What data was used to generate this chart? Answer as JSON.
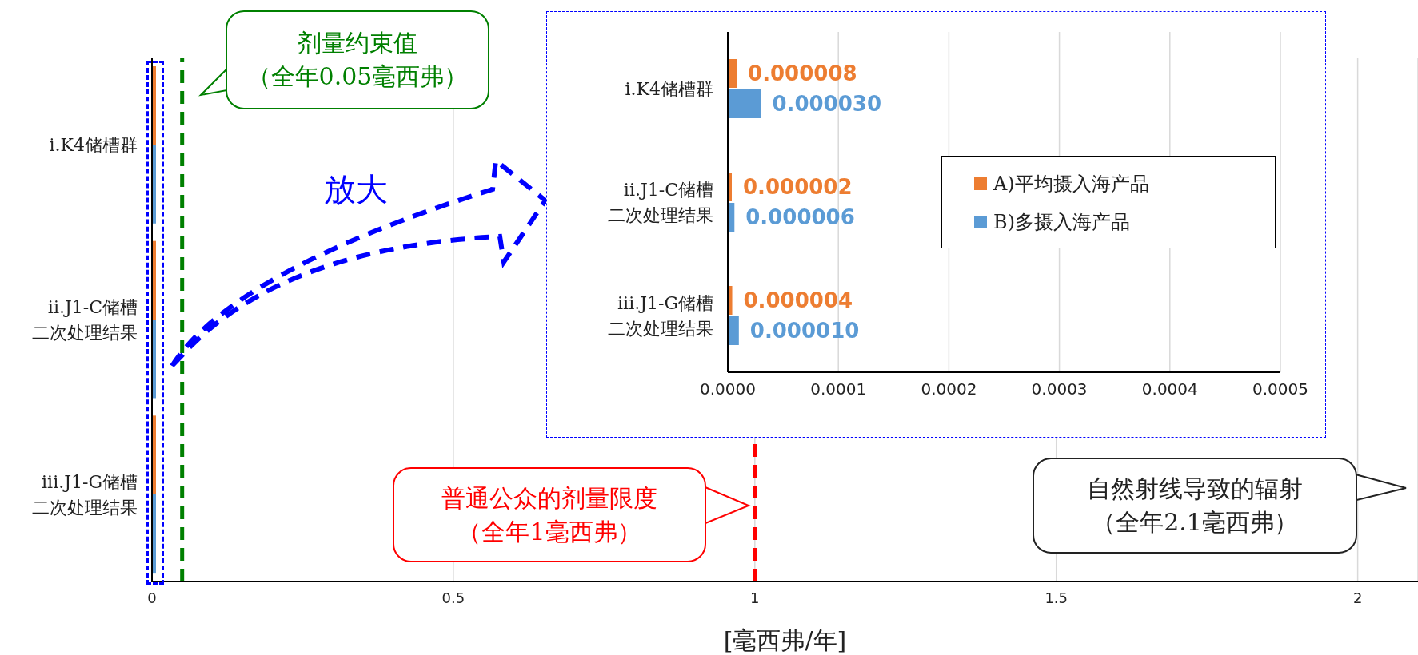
{
  "chart_data": [
    {
      "type": "bar",
      "orientation": "horizontal",
      "categories": [
        "i.K4储槽群",
        "ii.J1-C储槽二次处理结果",
        "iii.J1-G储槽二次处理结果"
      ],
      "series": [
        {
          "color": "#ed7d31",
          "values": [
            8e-06,
            2e-06,
            4e-06
          ]
        },
        {
          "color": "#5b9bd5",
          "values": [
            3e-05,
            6e-06,
            1e-05
          ]
        }
      ],
      "xlim": [
        0,
        2.1
      ],
      "xticks": [
        0,
        0.5,
        1,
        1.5,
        2
      ],
      "xlabel": "[毫西弗/年]",
      "grid": "x",
      "ref_lines": [
        {
          "axis": "x",
          "value": 0.05,
          "label": "剂量约束值（全年0.05毫西弗）",
          "color": "#008000",
          "line_style": "dashed"
        },
        {
          "axis": "x",
          "value": 1,
          "label": "普通公众的剂量限度（全年1毫西弗）",
          "color": "#ff0000",
          "line_style": "dashed"
        }
      ],
      "annotations": [
        "放大",
        "自然射线导致的辐射（全年2.1毫西弗）"
      ]
    },
    {
      "type": "bar",
      "orientation": "horizontal",
      "categories": [
        "i.K4储槽群",
        "ii.J1-C储槽二次处理结果",
        "iii.J1-G储槽二次处理结果"
      ],
      "series": [
        {
          "name": "A)平均摄入海产品",
          "color": "#ed7d31",
          "values": [
            8e-06,
            2e-06,
            4e-06
          ],
          "value_labels": [
            "0.000008",
            "0.000002",
            "0.000004"
          ]
        },
        {
          "name": "B)多摄入海产品",
          "color": "#5b9bd5",
          "values": [
            3e-05,
            6e-06,
            1e-05
          ],
          "value_labels": [
            "0.000030",
            "0.000006",
            "0.000010"
          ]
        }
      ],
      "xlim": [
        0,
        0.0005
      ],
      "xticks": [
        {
          "value": 0,
          "label": "0.0000"
        },
        {
          "value": 0.0001,
          "label": "0.0001"
        },
        {
          "value": 0.0002,
          "label": "0.0002"
        },
        {
          "value": 0.0003,
          "label": "0.0003"
        },
        {
          "value": 0.0004,
          "label": "0.0004"
        },
        {
          "value": 0.0005,
          "label": "0.0005"
        }
      ],
      "grid": "x",
      "legend": "right"
    }
  ]
}
